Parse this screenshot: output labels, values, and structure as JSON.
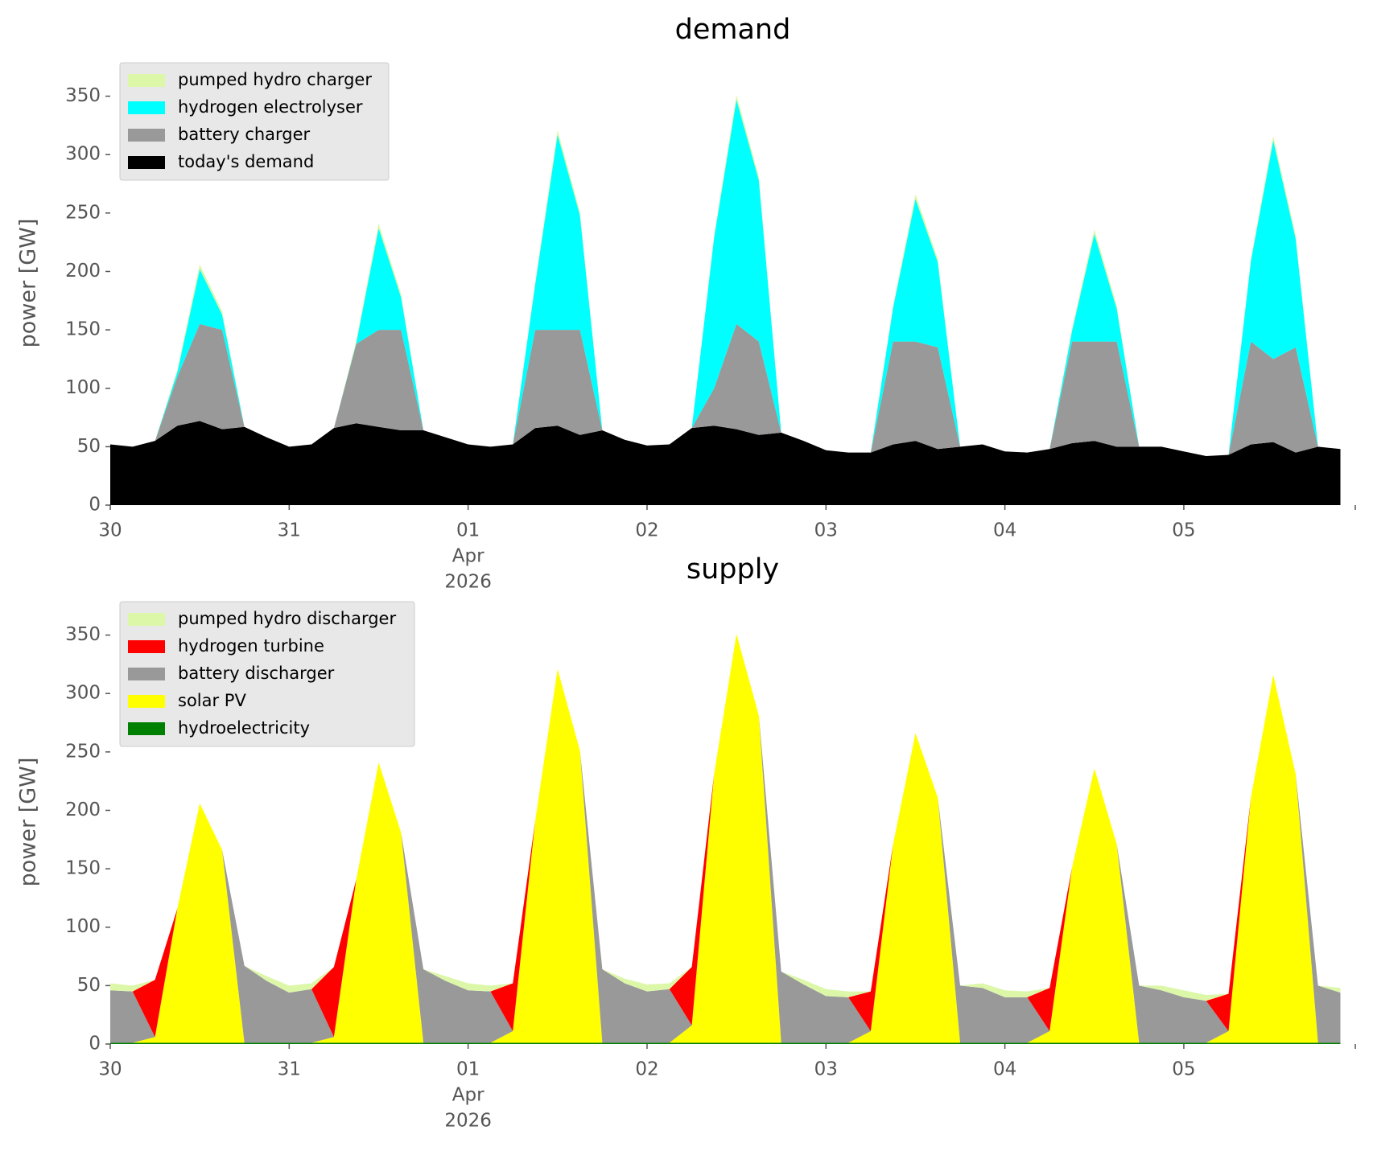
{
  "chart_data": [
    {
      "type": "stacked_area",
      "title": "demand",
      "ylabel": "power [GW]",
      "x": [
        0,
        3,
        6,
        9,
        12,
        15,
        18,
        21,
        24,
        27,
        30,
        33,
        36,
        39,
        42,
        45,
        48,
        51,
        54,
        57,
        60,
        63,
        66,
        69,
        72,
        75,
        78,
        81,
        84,
        87,
        90,
        93,
        96,
        99,
        102,
        105,
        108,
        111,
        114,
        117,
        120,
        123,
        126,
        129,
        132,
        135,
        138,
        141,
        144,
        147,
        150,
        153,
        156,
        159,
        162,
        165
      ],
      "xlim": [
        0,
        167
      ],
      "xticks": [
        {
          "value": 0,
          "label": "30"
        },
        {
          "value": 24,
          "label": "31"
        },
        {
          "value": 48,
          "label": "01"
        },
        {
          "value": 72,
          "label": "02"
        },
        {
          "value": 96,
          "label": "03"
        },
        {
          "value": 120,
          "label": "04"
        },
        {
          "value": 144,
          "label": "05"
        }
      ],
      "xtick_sublabel": {
        "at": 48,
        "text": [
          "Apr",
          "2026"
        ]
      },
      "ylim": [
        0,
        380
      ],
      "yticks": [
        0,
        50,
        100,
        150,
        200,
        250,
        300,
        350
      ],
      "grid": false,
      "legend": "upper left",
      "series": [
        {
          "name": "today's demand",
          "color": "#000000",
          "values": [
            52,
            50,
            55,
            68,
            72,
            65,
            67,
            58,
            50,
            52,
            66,
            70,
            67,
            64,
            64,
            58,
            52,
            50,
            52,
            66,
            68,
            60,
            64,
            56,
            51,
            52,
            66,
            68,
            65,
            60,
            62,
            55,
            47,
            45,
            45,
            52,
            55,
            48,
            50,
            52,
            46,
            45,
            48,
            53,
            55,
            50,
            50,
            50,
            46,
            42,
            43,
            52,
            54,
            45,
            50,
            48
          ]
        },
        {
          "name": "battery charger",
          "color": "#999999",
          "values": [
            0,
            0,
            0,
            42,
            83,
            85,
            0,
            0,
            0,
            0,
            0,
            68,
            83,
            86,
            0,
            0,
            0,
            0,
            0,
            84,
            82,
            90,
            0,
            0,
            0,
            0,
            0,
            32,
            90,
            80,
            0,
            0,
            0,
            0,
            0,
            88,
            85,
            87,
            0,
            0,
            0,
            0,
            0,
            87,
            85,
            90,
            0,
            0,
            0,
            0,
            0,
            88,
            71,
            90,
            0,
            0
          ]
        },
        {
          "name": "hydrogen electrolyser",
          "color": "#00ffff",
          "values": [
            0,
            0,
            0,
            4,
            47,
            13,
            0,
            0,
            0,
            0,
            0,
            1,
            87,
            28,
            0,
            0,
            0,
            0,
            0,
            39,
            167,
            98,
            0,
            0,
            0,
            0,
            0,
            129,
            192,
            138,
            0,
            0,
            0,
            0,
            0,
            29,
            122,
            73,
            0,
            0,
            0,
            0,
            0,
            9,
            92,
            28,
            0,
            0,
            0,
            0,
            0,
            69,
            187,
            93,
            0,
            0
          ]
        },
        {
          "name": "pumped hydro charger",
          "color": "#dcf7a8",
          "values": [
            0,
            0,
            0,
            2,
            4,
            3,
            0,
            0,
            0,
            0,
            0,
            2,
            4,
            3,
            0,
            0,
            0,
            0,
            0,
            2,
            4,
            3,
            0,
            0,
            0,
            0,
            0,
            2,
            4,
            3,
            0,
            0,
            0,
            0,
            0,
            2,
            4,
            3,
            0,
            0,
            0,
            0,
            0,
            2,
            4,
            3,
            0,
            0,
            0,
            0,
            0,
            2,
            4,
            3,
            0,
            0
          ]
        }
      ]
    },
    {
      "type": "stacked_area",
      "title": "supply",
      "ylabel": "power [GW]",
      "x": [
        0,
        3,
        6,
        9,
        12,
        15,
        18,
        21,
        24,
        27,
        30,
        33,
        36,
        39,
        42,
        45,
        48,
        51,
        54,
        57,
        60,
        63,
        66,
        69,
        72,
        75,
        78,
        81,
        84,
        87,
        90,
        93,
        96,
        99,
        102,
        105,
        108,
        111,
        114,
        117,
        120,
        123,
        126,
        129,
        132,
        135,
        138,
        141,
        144,
        147,
        150,
        153,
        156,
        159,
        162,
        165
      ],
      "xlim": [
        0,
        167
      ],
      "xticks": [
        {
          "value": 0,
          "label": "30"
        },
        {
          "value": 24,
          "label": "31"
        },
        {
          "value": 48,
          "label": "01"
        },
        {
          "value": 72,
          "label": "02"
        },
        {
          "value": 96,
          "label": "03"
        },
        {
          "value": 120,
          "label": "04"
        },
        {
          "value": 144,
          "label": "05"
        }
      ],
      "xtick_sublabel": {
        "at": 48,
        "text": [
          "Apr",
          "2026"
        ]
      },
      "ylim": [
        0,
        380
      ],
      "yticks": [
        0,
        50,
        100,
        150,
        200,
        250,
        300,
        350
      ],
      "grid": false,
      "legend": "upper left",
      "series": [
        {
          "name": "hydroelectricity",
          "color": "#008000",
          "values": [
            1,
            1,
            1,
            1,
            1,
            1,
            1,
            1,
            1,
            1,
            1,
            1,
            1,
            1,
            1,
            1,
            1,
            1,
            1,
            1,
            1,
            1,
            1,
            1,
            1,
            1,
            1,
            1,
            1,
            1,
            1,
            1,
            1,
            1,
            1,
            1,
            1,
            1,
            1,
            1,
            1,
            1,
            1,
            1,
            1,
            1,
            1,
            1,
            1,
            1,
            1,
            1,
            1,
            1,
            1,
            1
          ]
        },
        {
          "name": "solar PV",
          "color": "#ffff00",
          "values": [
            0,
            0,
            5,
            115,
            205,
            165,
            0,
            0,
            0,
            0,
            5,
            140,
            240,
            180,
            0,
            0,
            0,
            0,
            10,
            190,
            320,
            250,
            0,
            0,
            0,
            0,
            15,
            230,
            350,
            280,
            0,
            0,
            0,
            0,
            10,
            170,
            265,
            210,
            0,
            0,
            0,
            0,
            10,
            150,
            235,
            170,
            0,
            0,
            0,
            0,
            10,
            210,
            315,
            230,
            0,
            0
          ]
        },
        {
          "name": "battery discharger",
          "color": "#999999",
          "values": [
            45,
            44,
            0,
            0,
            0,
            0,
            66,
            53,
            43,
            46,
            0,
            0,
            0,
            0,
            63,
            53,
            45,
            44,
            0,
            0,
            0,
            0,
            63,
            51,
            44,
            46,
            0,
            0,
            0,
            0,
            61,
            50,
            40,
            39,
            0,
            0,
            0,
            0,
            49,
            47,
            39,
            39,
            0,
            0,
            0,
            0,
            49,
            45,
            39,
            36,
            0,
            0,
            0,
            0,
            49,
            43
          ]
        },
        {
          "name": "hydrogen turbine",
          "color": "#ff0000",
          "values": [
            0,
            0,
            49,
            0,
            0,
            0,
            0,
            0,
            0,
            0,
            60,
            0,
            0,
            0,
            0,
            0,
            0,
            0,
            41,
            0,
            0,
            0,
            0,
            0,
            0,
            0,
            50,
            0,
            0,
            0,
            0,
            0,
            0,
            0,
            34,
            0,
            0,
            0,
            0,
            0,
            0,
            0,
            37,
            0,
            0,
            0,
            0,
            0,
            0,
            0,
            32,
            0,
            0,
            0,
            0,
            0
          ]
        },
        {
          "name": "pumped hydro discharger",
          "color": "#dcf7a8",
          "values": [
            6,
            5,
            0,
            0,
            0,
            0,
            0,
            4,
            6,
            5,
            0,
            0,
            0,
            0,
            0,
            4,
            6,
            5,
            0,
            0,
            0,
            0,
            0,
            4,
            6,
            5,
            0,
            0,
            0,
            0,
            0,
            4,
            6,
            5,
            0,
            0,
            0,
            0,
            0,
            4,
            6,
            5,
            0,
            0,
            0,
            0,
            0,
            4,
            6,
            5,
            0,
            0,
            0,
            0,
            0,
            4
          ]
        }
      ]
    }
  ]
}
